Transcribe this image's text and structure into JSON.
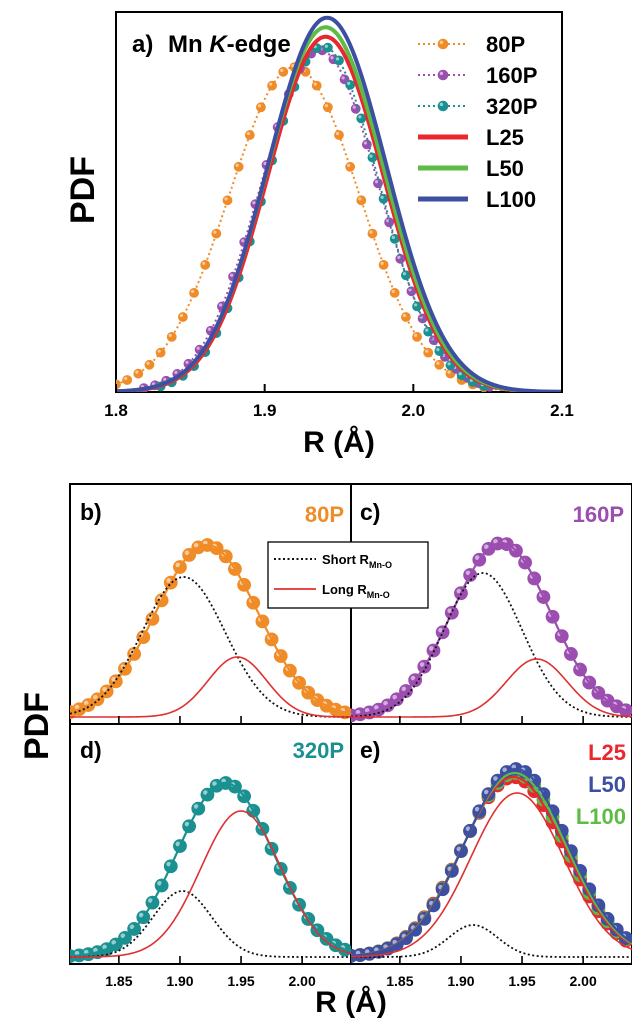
{
  "chart_data": [
    {
      "panel_label": "a)",
      "type": "line",
      "title": "Mn K-edge",
      "title_parts": {
        "pre": "Mn ",
        "italic": "K",
        "post": "-edge"
      },
      "xlabel": "R (Å)",
      "ylabel": "PDF",
      "xlim": [
        1.8,
        2.1
      ],
      "xticks": [
        "1.8",
        "1.9",
        "2.0",
        "2.1"
      ],
      "ylim": [
        0,
        1.0
      ],
      "legend_position": "top-right",
      "series": [
        {
          "name": "80P",
          "style": "dotted-markers",
          "color": "#F08C28",
          "center": 1.92,
          "sigma": 0.0438,
          "amplitude": 0.855
        },
        {
          "name": "160P",
          "style": "dotted-markers",
          "color": "#9B4DB0",
          "center": 1.937,
          "sigma": 0.0395,
          "amplitude": 0.9
        },
        {
          "name": "320P",
          "style": "dotted-markers",
          "color": "#1A9090",
          "center": 1.939,
          "sigma": 0.038,
          "amplitude": 0.91
        },
        {
          "name": "L25",
          "style": "solid",
          "color": "#E8282E",
          "center": 1.941,
          "sigma": 0.039,
          "amplitude": 0.935
        },
        {
          "name": "L50",
          "style": "solid",
          "color": "#5DBB46",
          "center": 1.941,
          "sigma": 0.0395,
          "amplitude": 0.96
        },
        {
          "name": "L100",
          "style": "solid",
          "color": "#3C4FA0",
          "center": 1.942,
          "sigma": 0.0398,
          "amplitude": 0.985
        }
      ]
    },
    {
      "panel_label": "b)",
      "type": "line",
      "sample_label": "80P",
      "sample_color": "#F08C28",
      "series": [
        {
          "name": "80P",
          "role": "data",
          "color": "#F08C28",
          "center": 1.922,
          "sigma": 0.042,
          "amplitude": 0.86
        },
        {
          "name": "Short R_Mn-O",
          "role": "short",
          "color": "#111111",
          "center": 1.903,
          "sigma": 0.034,
          "amplitude": 0.7
        },
        {
          "name": "Long R_Mn-O",
          "role": "long",
          "color": "#E03030",
          "center": 1.947,
          "sigma": 0.024,
          "amplitude": 0.3
        }
      ]
    },
    {
      "panel_label": "c)",
      "type": "line",
      "sample_label": "160P",
      "sample_color": "#9B4DB0",
      "series": [
        {
          "name": "160P",
          "role": "data",
          "color": "#9B4DB0",
          "center": 1.933,
          "sigma": 0.04,
          "amplitude": 0.87
        },
        {
          "name": "Short R_Mn-O",
          "role": "short",
          "color": "#111111",
          "center": 1.918,
          "sigma": 0.032,
          "amplitude": 0.72
        },
        {
          "name": "Long R_Mn-O",
          "role": "long",
          "color": "#E03030",
          "center": 1.962,
          "sigma": 0.025,
          "amplitude": 0.29
        }
      ]
    },
    {
      "panel_label": "d)",
      "type": "line",
      "sample_label": "320P",
      "sample_color": "#1A9090",
      "xlabel": "R (Å)",
      "xticks": [
        "1.85",
        "1.90",
        "1.95",
        "2.00"
      ],
      "series": [
        {
          "name": "320P",
          "role": "data",
          "color": "#1A9090",
          "center": 1.937,
          "sigma": 0.039,
          "amplitude": 0.87
        },
        {
          "name": "Short R_Mn-O",
          "role": "short",
          "color": "#111111",
          "center": 1.902,
          "sigma": 0.024,
          "amplitude": 0.33
        },
        {
          "name": "Long R_Mn-O",
          "role": "long",
          "color": "#E03030",
          "center": 1.95,
          "sigma": 0.033,
          "amplitude": 0.73
        }
      ]
    },
    {
      "panel_label": "e)",
      "type": "line",
      "xticks": [
        "1.85",
        "1.90",
        "1.95",
        "2.00"
      ],
      "legend": [
        {
          "name": "L25",
          "color": "#E8282E"
        },
        {
          "name": "L50",
          "color": "#3C4FA0"
        },
        {
          "name": "L100",
          "color": "#5DBB46"
        }
      ],
      "series": [
        {
          "name": "L25",
          "role": "data",
          "color": "#E8282E",
          "center": 1.943,
          "sigma": 0.042,
          "amplitude": 0.9
        },
        {
          "name": "L100",
          "role": "data",
          "color": "#5DBB46",
          "center": 1.944,
          "sigma": 0.042,
          "amplitude": 0.92
        },
        {
          "name": "L50",
          "role": "data",
          "color": "#3C4FA0",
          "center": 1.945,
          "sigma": 0.042,
          "amplitude": 0.94
        },
        {
          "name": "Short R_Mn-O",
          "role": "short",
          "color": "#111111",
          "center": 1.91,
          "sigma": 0.02,
          "amplitude": 0.16
        },
        {
          "name": "Long R_Mn-O",
          "role": "long",
          "color": "#E03030",
          "center": 1.946,
          "sigma": 0.038,
          "amplitude": 0.82
        }
      ]
    }
  ],
  "lower_grid": {
    "ylabel": "PDF",
    "xlabel": "R (Å)",
    "xlim": [
      1.81,
      2.04
    ],
    "legend": [
      {
        "text": "Short R",
        "sub": "Mn-O",
        "style": "dotted",
        "color": "#111111"
      },
      {
        "text": "Long R",
        "sub": "Mn-O",
        "style": "solid",
        "color": "#E03030"
      }
    ]
  }
}
